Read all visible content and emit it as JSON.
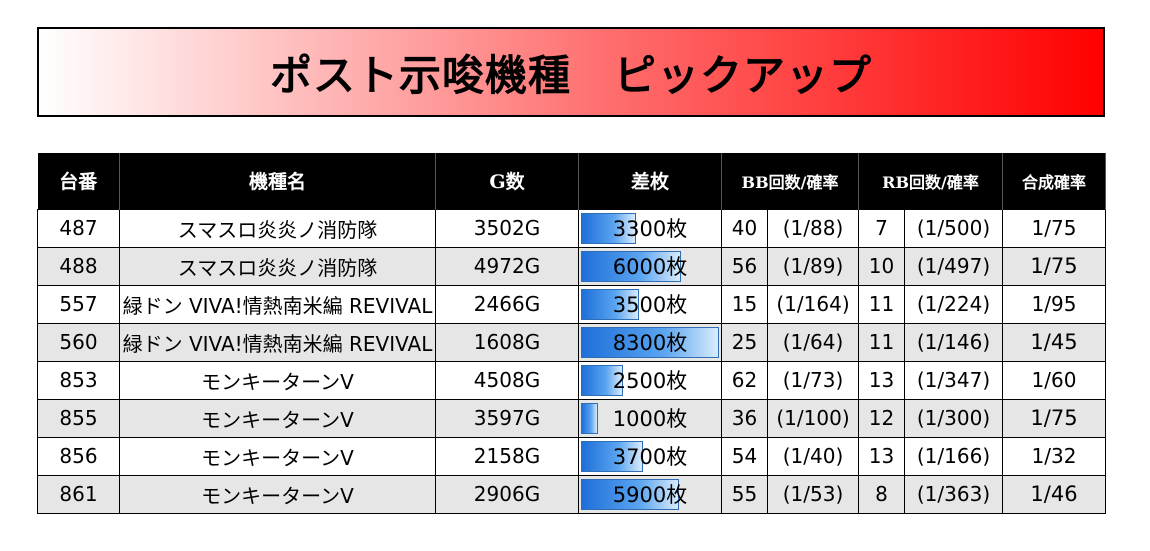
{
  "title": "ポスト示唆機種　ピックアップ",
  "headers": {
    "unit": "台番",
    "machine": "機種名",
    "games": "G数",
    "diff": "差枚",
    "bb": "BB回数/確率",
    "rb": "RB回数/確率",
    "combined": "合成確率"
  },
  "colors": {
    "banner_start": "#ffffff",
    "banner_end": "#ff0000",
    "header_bg": "#000000",
    "bar": "#1e6fd9"
  },
  "diff_scale_max": 8300,
  "rows": [
    {
      "unit": "487",
      "machine": "スマスロ炎炎ノ消防隊",
      "games": "3502G",
      "diff": "3300枚",
      "diff_value": 3300,
      "bb": "40",
      "bb_prob": "(1/88)",
      "rb": "7",
      "rb_prob": "(1/500)",
      "combined": "1/75",
      "combined_emph": false
    },
    {
      "unit": "488",
      "machine": "スマスロ炎炎ノ消防隊",
      "games": "4972G",
      "diff": "6000枚",
      "diff_value": 6000,
      "bb": "56",
      "bb_prob": "(1/89)",
      "rb": "10",
      "rb_prob": "(1/497)",
      "combined": "1/75",
      "combined_emph": true
    },
    {
      "unit": "557",
      "machine": "緑ドン VIVA!情熱南米編 REVIVAL",
      "games": "2466G",
      "diff": "3500枚",
      "diff_value": 3500,
      "bb": "15",
      "bb_prob": "(1/164)",
      "rb": "11",
      "rb_prob": "(1/224)",
      "combined": "1/95",
      "combined_emph": false
    },
    {
      "unit": "560",
      "machine": "緑ドン VIVA!情熱南米編 REVIVAL",
      "games": "1608G",
      "diff": "8300枚",
      "diff_value": 8300,
      "bb": "25",
      "bb_prob": "(1/64)",
      "rb": "11",
      "rb_prob": "(1/146)",
      "combined": "1/45",
      "combined_emph": true
    },
    {
      "unit": "853",
      "machine": "モンキーターンV",
      "games": "4508G",
      "diff": "2500枚",
      "diff_value": 2500,
      "bb": "62",
      "bb_prob": "(1/73)",
      "rb": "13",
      "rb_prob": "(1/347)",
      "combined": "1/60",
      "combined_emph": false
    },
    {
      "unit": "855",
      "machine": "モンキーターンV",
      "games": "3597G",
      "diff": "1000枚",
      "diff_value": 1000,
      "bb": "36",
      "bb_prob": "(1/100)",
      "rb": "12",
      "rb_prob": "(1/300)",
      "combined": "1/75",
      "combined_emph": true
    },
    {
      "unit": "856",
      "machine": "モンキーターンV",
      "games": "2158G",
      "diff": "3700枚",
      "diff_value": 3700,
      "bb": "54",
      "bb_prob": "(1/40)",
      "rb": "13",
      "rb_prob": "(1/166)",
      "combined": "1/32",
      "combined_emph": false
    },
    {
      "unit": "861",
      "machine": "モンキーターンV",
      "games": "2906G",
      "diff": "5900枚",
      "diff_value": 5900,
      "bb": "55",
      "bb_prob": "(1/53)",
      "rb": "8",
      "rb_prob": "(1/363)",
      "combined": "1/46",
      "combined_emph": true
    }
  ]
}
